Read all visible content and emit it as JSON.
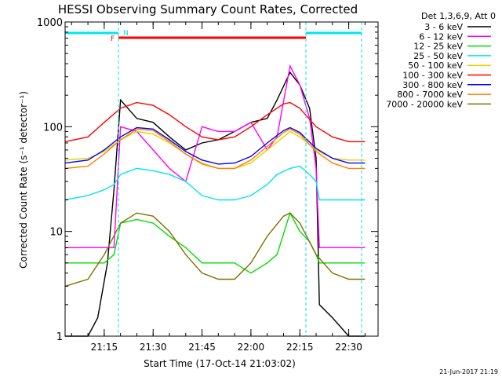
{
  "chart_data": {
    "type": "line",
    "title": "HESSI Observing Summary Count Rates, Corrected",
    "xlabel": "Start Time (17-Oct-14 21:03:02)",
    "ylabel": "Corrected Count Rate (s⁻¹ detector⁻¹)",
    "yscale": "log",
    "ylim": [
      1,
      1000
    ],
    "xlim_minutes": [
      21.05,
      22.65
    ],
    "x_ticks": [
      "21:15",
      "21:30",
      "21:45",
      "22:00",
      "22:15",
      "22:30"
    ],
    "y_ticks": [
      "1",
      "10",
      "100",
      "1000"
    ],
    "legend_title": "Det 1,3,6,9, Att 0",
    "legend_position": "right",
    "series": [
      {
        "name": "3 - 6 keV",
        "color": "#000000",
        "x": [
          "21:03",
          "21:10",
          "21:13",
          "21:16",
          "21:18",
          "21:20",
          "21:25",
          "21:30",
          "21:35",
          "21:40",
          "21:45",
          "21:50",
          "21:55",
          "22:00",
          "22:05",
          "22:08",
          "22:12",
          "22:15",
          "22:18",
          "22:20",
          "22:21",
          "22:25",
          "22:30",
          "22:35"
        ],
        "values": [
          1,
          1,
          1.5,
          5,
          25,
          180,
          120,
          110,
          80,
          60,
          70,
          75,
          90,
          110,
          120,
          180,
          330,
          250,
          150,
          50,
          2,
          1.5,
          1,
          1
        ]
      },
      {
        "name": "6 - 12 keV",
        "color": "#ff00ff",
        "x": [
          "21:03",
          "21:10",
          "21:15",
          "21:18",
          "21:20",
          "21:25",
          "21:30",
          "21:35",
          "21:40",
          "21:45",
          "21:50",
          "21:55",
          "22:00",
          "22:05",
          "22:08",
          "22:12",
          "22:15",
          "22:18",
          "22:20",
          "22:21",
          "22:25",
          "22:30",
          "22:35"
        ],
        "values": [
          7,
          7,
          7,
          7,
          100,
          90,
          60,
          40,
          30,
          100,
          90,
          90,
          110,
          60,
          80,
          380,
          250,
          120,
          40,
          7,
          7,
          7,
          7
        ]
      },
      {
        "name": "12 - 25 keV",
        "color": "#00dd00",
        "x": [
          "21:03",
          "21:15",
          "21:18",
          "21:20",
          "21:25",
          "21:30",
          "21:35",
          "21:40",
          "21:45",
          "21:50",
          "21:55",
          "22:00",
          "22:05",
          "22:08",
          "22:12",
          "22:15",
          "22:18",
          "22:20",
          "22:21",
          "22:25",
          "22:30",
          "22:35"
        ],
        "values": [
          5,
          5,
          6,
          12,
          13,
          12,
          9,
          7,
          5,
          5,
          5,
          4,
          5,
          6,
          15,
          10,
          8,
          6,
          5,
          5,
          5,
          5
        ]
      },
      {
        "name": "25 - 50 keV",
        "color": "#00e5ee",
        "x": [
          "21:03",
          "21:10",
          "21:15",
          "21:18",
          "21:20",
          "21:25",
          "21:30",
          "21:35",
          "21:40",
          "21:45",
          "21:50",
          "21:55",
          "22:00",
          "22:05",
          "22:08",
          "22:12",
          "22:15",
          "22:18",
          "22:20",
          "22:21",
          "22:25",
          "22:30",
          "22:35"
        ],
        "values": [
          20,
          22,
          25,
          28,
          35,
          40,
          38,
          35,
          30,
          22,
          20,
          20,
          22,
          28,
          35,
          40,
          42,
          35,
          30,
          20,
          20,
          20,
          20
        ]
      },
      {
        "name": "50 - 100 keV",
        "color": "#e8d000",
        "x": [
          "21:03",
          "21:10",
          "21:15",
          "21:20",
          "21:25",
          "21:30",
          "21:35",
          "21:40",
          "21:45",
          "21:50",
          "21:55",
          "22:00",
          "22:05",
          "22:10",
          "22:12",
          "22:15",
          "22:20",
          "22:25",
          "22:30",
          "22:35"
        ],
        "values": [
          48,
          50,
          58,
          75,
          90,
          85,
          70,
          55,
          45,
          40,
          40,
          45,
          60,
          80,
          90,
          80,
          60,
          50,
          48,
          48
        ]
      },
      {
        "name": "100 - 300 keV",
        "color": "#ff0000",
        "x": [
          "21:03",
          "21:10",
          "21:15",
          "21:20",
          "21:25",
          "21:30",
          "21:35",
          "21:40",
          "21:45",
          "21:50",
          "21:55",
          "22:00",
          "22:05",
          "22:10",
          "22:12",
          "22:15",
          "22:20",
          "22:25",
          "22:30",
          "22:35"
        ],
        "values": [
          72,
          80,
          110,
          150,
          170,
          160,
          130,
          100,
          80,
          75,
          80,
          100,
          130,
          165,
          170,
          150,
          100,
          80,
          72,
          72
        ]
      },
      {
        "name": "300 - 800 keV",
        "color": "#0000ff",
        "x": [
          "21:03",
          "21:10",
          "21:15",
          "21:20",
          "21:25",
          "21:30",
          "21:35",
          "21:40",
          "21:45",
          "21:50",
          "21:55",
          "22:00",
          "22:05",
          "22:10",
          "22:12",
          "22:15",
          "22:20",
          "22:25",
          "22:30",
          "22:35"
        ],
        "values": [
          45,
          48,
          60,
          80,
          98,
          95,
          75,
          58,
          48,
          44,
          45,
          52,
          70,
          92,
          98,
          88,
          62,
          50,
          45,
          45
        ]
      },
      {
        "name": "800 - 7000 keV",
        "color": "#ff7f00",
        "x": [
          "21:03",
          "21:10",
          "21:15",
          "21:20",
          "21:25",
          "21:30",
          "21:35",
          "21:40",
          "21:45",
          "21:50",
          "21:55",
          "22:00",
          "22:05",
          "22:10",
          "22:12",
          "22:15",
          "22:20",
          "22:25",
          "22:30",
          "22:35"
        ],
        "values": [
          40,
          42,
          55,
          75,
          95,
          92,
          72,
          55,
          44,
          40,
          40,
          48,
          65,
          88,
          95,
          85,
          58,
          45,
          40,
          40
        ]
      },
      {
        "name": "7000 - 20000 keV",
        "color": "#807000",
        "x": [
          "21:03",
          "21:10",
          "21:15",
          "21:20",
          "21:25",
          "21:30",
          "21:35",
          "21:40",
          "21:45",
          "21:50",
          "21:55",
          "22:00",
          "22:05",
          "22:10",
          "22:12",
          "22:15",
          "22:20",
          "22:25",
          "22:30",
          "22:35"
        ],
        "values": [
          3,
          3.5,
          6,
          12,
          15,
          14,
          10,
          6,
          4,
          3.5,
          3.5,
          5,
          9,
          14,
          15,
          12,
          6,
          4,
          3.5,
          3.5
        ]
      }
    ],
    "flags": [
      {
        "label": "N",
        "color": "#00e5ee"
      },
      {
        "label": "F",
        "color": "#ff0000"
      }
    ]
  },
  "footer": {
    "timestamp": "21-Jun-2017 21:19"
  }
}
